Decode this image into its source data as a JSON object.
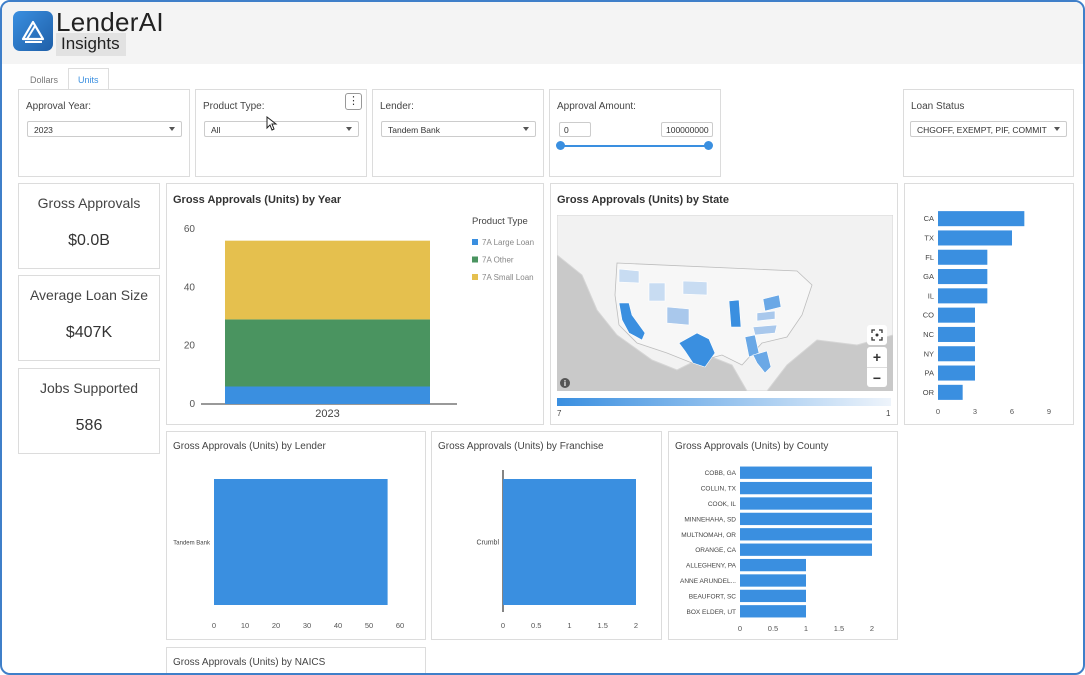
{
  "app": {
    "title": "LenderAI",
    "subtitle": "Insights"
  },
  "tabs": [
    {
      "label": "Dollars",
      "active": false
    },
    {
      "label": "Units",
      "active": true
    }
  ],
  "filters": {
    "approval_year": {
      "label": "Approval Year:",
      "value": "2023"
    },
    "product_type": {
      "label": "Product Type:",
      "value": "All",
      "menu_icon": "⋮"
    },
    "lender": {
      "label": "Lender:",
      "value": "Tandem Bank"
    },
    "approval_amount": {
      "label": "Approval Amount:",
      "min": "0",
      "max": "100000000"
    },
    "loan_status": {
      "label": "Loan Status",
      "value": "CHGOFF, EXEMPT, PIF, COMMIT"
    }
  },
  "kpis": {
    "gross_approvals": {
      "label": "Gross Approvals",
      "value": "$0.0B"
    },
    "avg_loan_size": {
      "label": "Average Loan Size",
      "value": "$407K"
    },
    "jobs_supported": {
      "label": "Jobs Supported",
      "value": "586"
    }
  },
  "panels": {
    "by_year": "Gross Approvals (Units) by Year",
    "by_state": "Gross Approvals (Units) by State",
    "by_lender": "Gross Approvals (Units) by Lender",
    "by_franchise": "Gross Approvals (Units) by Franchise",
    "by_county": "Gross Approvals (Units) by County",
    "by_naics": "Gross Approvals (Units) by NAICS"
  },
  "map": {
    "legend_min": "7",
    "legend_max": "1",
    "zoom_in": "+",
    "zoom_out": "−",
    "info_icon": "i",
    "colors": {
      "dark": "#3a8fe0",
      "light": "#c8dcf2",
      "land": "#f2f2f2",
      "water": "#c9c9c9"
    }
  },
  "colors": {
    "bar_blue": "#3a8fe0",
    "green": "#4a9460",
    "yellow": "#e5c04e",
    "accent": "#3a8fe0"
  },
  "chart_data": [
    {
      "id": "by_year",
      "type": "bar",
      "stacked": true,
      "categories": [
        "2023"
      ],
      "series": [
        {
          "name": "7A Large Loan",
          "values": [
            6
          ],
          "color": "#3a8fe0"
        },
        {
          "name": "7A Other",
          "values": [
            23
          ],
          "color": "#4a9460"
        },
        {
          "name": "7A Small Loan",
          "values": [
            27
          ],
          "color": "#e5c04e"
        }
      ],
      "legend_title": "Product Type",
      "yticks": [
        "0",
        "20",
        "40",
        "60"
      ],
      "ylim": [
        0,
        60
      ]
    },
    {
      "id": "by_state",
      "type": "bar",
      "orientation": "horizontal",
      "categories": [
        "CA",
        "TX",
        "FL",
        "GA",
        "IL",
        "CO",
        "NC",
        "NY",
        "PA",
        "OR"
      ],
      "values": [
        7,
        6,
        4,
        4,
        4,
        3,
        3,
        3,
        3,
        2
      ],
      "xticks": [
        "0",
        "3",
        "6",
        "9"
      ],
      "xlim": [
        0,
        9
      ]
    },
    {
      "id": "by_lender",
      "type": "bar",
      "orientation": "horizontal",
      "categories": [
        "Tandem Bank"
      ],
      "values": [
        56
      ],
      "xticks": [
        "0",
        "10",
        "20",
        "30",
        "40",
        "50",
        "60"
      ],
      "xlim": [
        0,
        60
      ]
    },
    {
      "id": "by_franchise",
      "type": "bar",
      "orientation": "horizontal",
      "categories": [
        "Crumbl"
      ],
      "values": [
        2
      ],
      "xticks": [
        "0",
        "0.5",
        "1",
        "1.5",
        "2"
      ],
      "xlim": [
        0,
        2
      ]
    },
    {
      "id": "by_county",
      "type": "bar",
      "orientation": "horizontal",
      "categories": [
        "COBB, GA",
        "COLLIN, TX",
        "COOK, IL",
        "MINNEHAHA, SD",
        "MULTNOMAH, OR",
        "ORANGE, CA",
        "ALLEGHENY, PA",
        "ANNE ARUNDEL...",
        "BEAUFORT, SC",
        "BOX ELDER, UT"
      ],
      "values": [
        2,
        2,
        2,
        2,
        2,
        2,
        1,
        1,
        1,
        1
      ],
      "xticks": [
        "0",
        "0.5",
        "1",
        "1.5",
        "2"
      ],
      "xlim": [
        0,
        2
      ]
    }
  ]
}
